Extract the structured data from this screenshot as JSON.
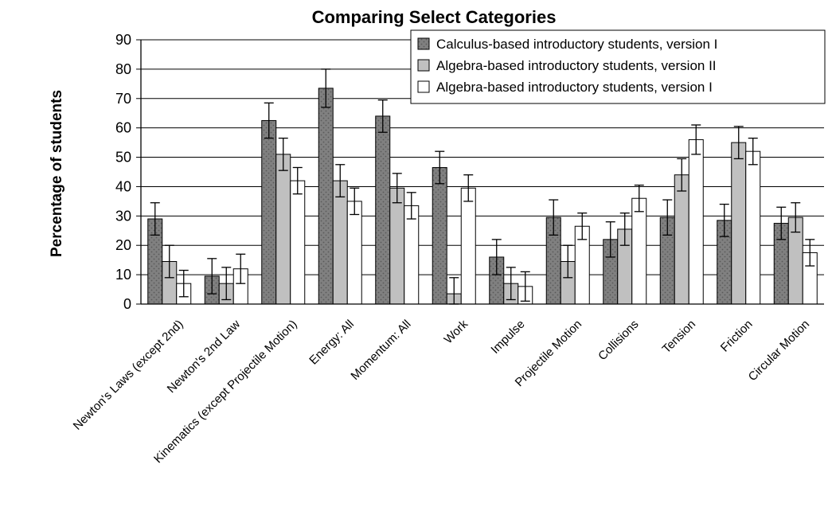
{
  "chart_data": {
    "type": "bar",
    "title": "Comparing Select Categories",
    "xlabel": "",
    "ylabel": "Percentage of students",
    "ylim": [
      0,
      90
    ],
    "yticks": [
      0,
      10,
      20,
      30,
      40,
      50,
      60,
      70,
      80,
      90
    ],
    "grid": true,
    "legend_position": "top-right",
    "categories": [
      "Newton's Laws (except 2nd)",
      "Newton's 2nd Law",
      "Kinematics (except Projectile Motion)",
      "Energy:  All",
      "Momentum:  All",
      "Work",
      "Impulse",
      "Projectile Motion",
      "Collisions",
      "Tension",
      "Friction",
      "Circular Motion"
    ],
    "series": [
      {
        "name": "Calculus-based introductory students, version I",
        "color": "#808080",
        "pattern": "dots",
        "values": [
          29,
          9.5,
          62.5,
          73.5,
          64,
          46.5,
          16,
          29.5,
          22,
          29.5,
          28.5,
          27.5
        ],
        "errors": [
          5.5,
          6,
          6,
          6.5,
          5.5,
          5.5,
          6,
          6,
          6,
          6,
          5.5,
          5.5
        ]
      },
      {
        "name": "Algebra-based introductory students, version II",
        "color": "#c0c0c0",
        "pattern": "solid",
        "values": [
          14.5,
          7,
          51,
          42,
          39.5,
          3.5,
          7,
          14.5,
          25.5,
          44,
          55,
          29.5
        ],
        "errors": [
          5.5,
          5.5,
          5.5,
          5.5,
          5,
          5.5,
          5.5,
          5.5,
          5.5,
          5.5,
          5.5,
          5
        ]
      },
      {
        "name": "Algebra-based introductory students, version I",
        "color": "#ffffff",
        "pattern": "solid",
        "values": [
          7,
          12,
          42,
          35,
          33.5,
          39.5,
          6,
          26.5,
          36,
          56,
          52,
          17.5
        ],
        "errors": [
          4.5,
          5,
          4.5,
          4.5,
          4.5,
          4.5,
          5,
          4.5,
          4.5,
          5,
          4.5,
          4.5
        ]
      }
    ]
  }
}
